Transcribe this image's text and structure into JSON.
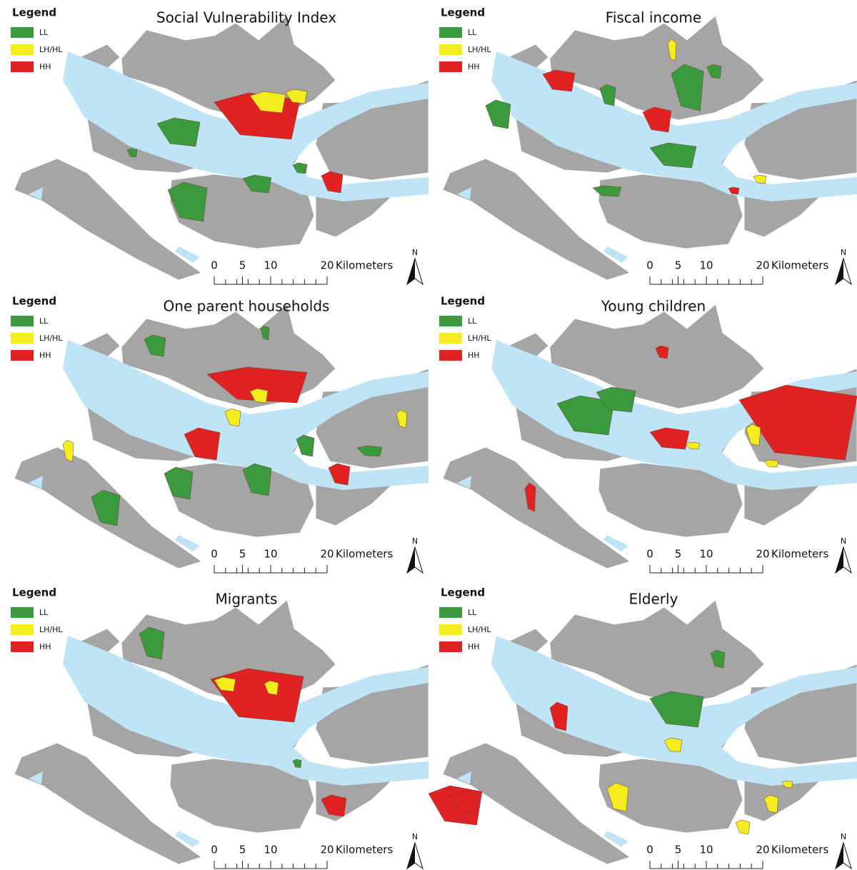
{
  "panels": [
    {
      "title": "Social Vulnerability Index",
      "legend": {
        "title": "Legend",
        "items": [
          {
            "label": "LL",
            "color": "#3b9a3e"
          },
          {
            "label": "LH/HL",
            "color": "#f4ec1f"
          },
          {
            "label": "HH",
            "color": "#e02222"
          }
        ]
      },
      "scale": {
        "ticks": [
          0,
          5,
          10,
          20
        ],
        "unit": "Kilometers"
      },
      "north": "N"
    },
    {
      "title": "Fiscal income",
      "legend": {
        "title": "Legend",
        "items": [
          {
            "label": "LL",
            "color": "#3b9a3e"
          },
          {
            "label": "LH/HL",
            "color": "#f4ec1f"
          },
          {
            "label": "HH",
            "color": "#e02222"
          }
        ]
      },
      "scale": {
        "ticks": [
          0,
          5,
          10,
          20
        ],
        "unit": "Kilometers"
      },
      "north": "N"
    },
    {
      "title": "One parent households",
      "legend": {
        "title": "Legend",
        "items": [
          {
            "label": "LL",
            "color": "#3b9a3e"
          },
          {
            "label": "LH/HL",
            "color": "#f4ec1f"
          },
          {
            "label": "HH",
            "color": "#e02222"
          }
        ]
      },
      "scale": {
        "ticks": [
          0,
          5,
          10,
          20
        ],
        "unit": "Kilometers"
      },
      "north": "N"
    },
    {
      "title": "Young children",
      "legend": {
        "title": "Legend",
        "items": [
          {
            "label": "LL",
            "color": "#3b9a3e"
          },
          {
            "label": "LH/HL",
            "color": "#f4ec1f"
          },
          {
            "label": "HH",
            "color": "#e02222"
          }
        ]
      },
      "scale": {
        "ticks": [
          0,
          5,
          10,
          20
        ],
        "unit": "Kilometers"
      },
      "north": "N"
    },
    {
      "title": "Migrants",
      "legend": {
        "title": "Legend",
        "items": [
          {
            "label": "LL",
            "color": "#3b9a3e"
          },
          {
            "label": "LH/HL",
            "color": "#f4ec1f"
          },
          {
            "label": "HH",
            "color": "#e02222"
          }
        ]
      },
      "scale": {
        "ticks": [
          0,
          5,
          10,
          20
        ],
        "unit": "Kilometers"
      },
      "north": "N"
    },
    {
      "title": "Elderly",
      "legend": {
        "title": "Legend",
        "items": [
          {
            "label": "LL",
            "color": "#3b9a3e"
          },
          {
            "label": "LH/HL",
            "color": "#f4ec1f"
          },
          {
            "label": "HH",
            "color": "#e02222"
          }
        ]
      },
      "scale": {
        "ticks": [
          0,
          5,
          10,
          20
        ],
        "unit": "Kilometers"
      },
      "north": "N"
    }
  ]
}
